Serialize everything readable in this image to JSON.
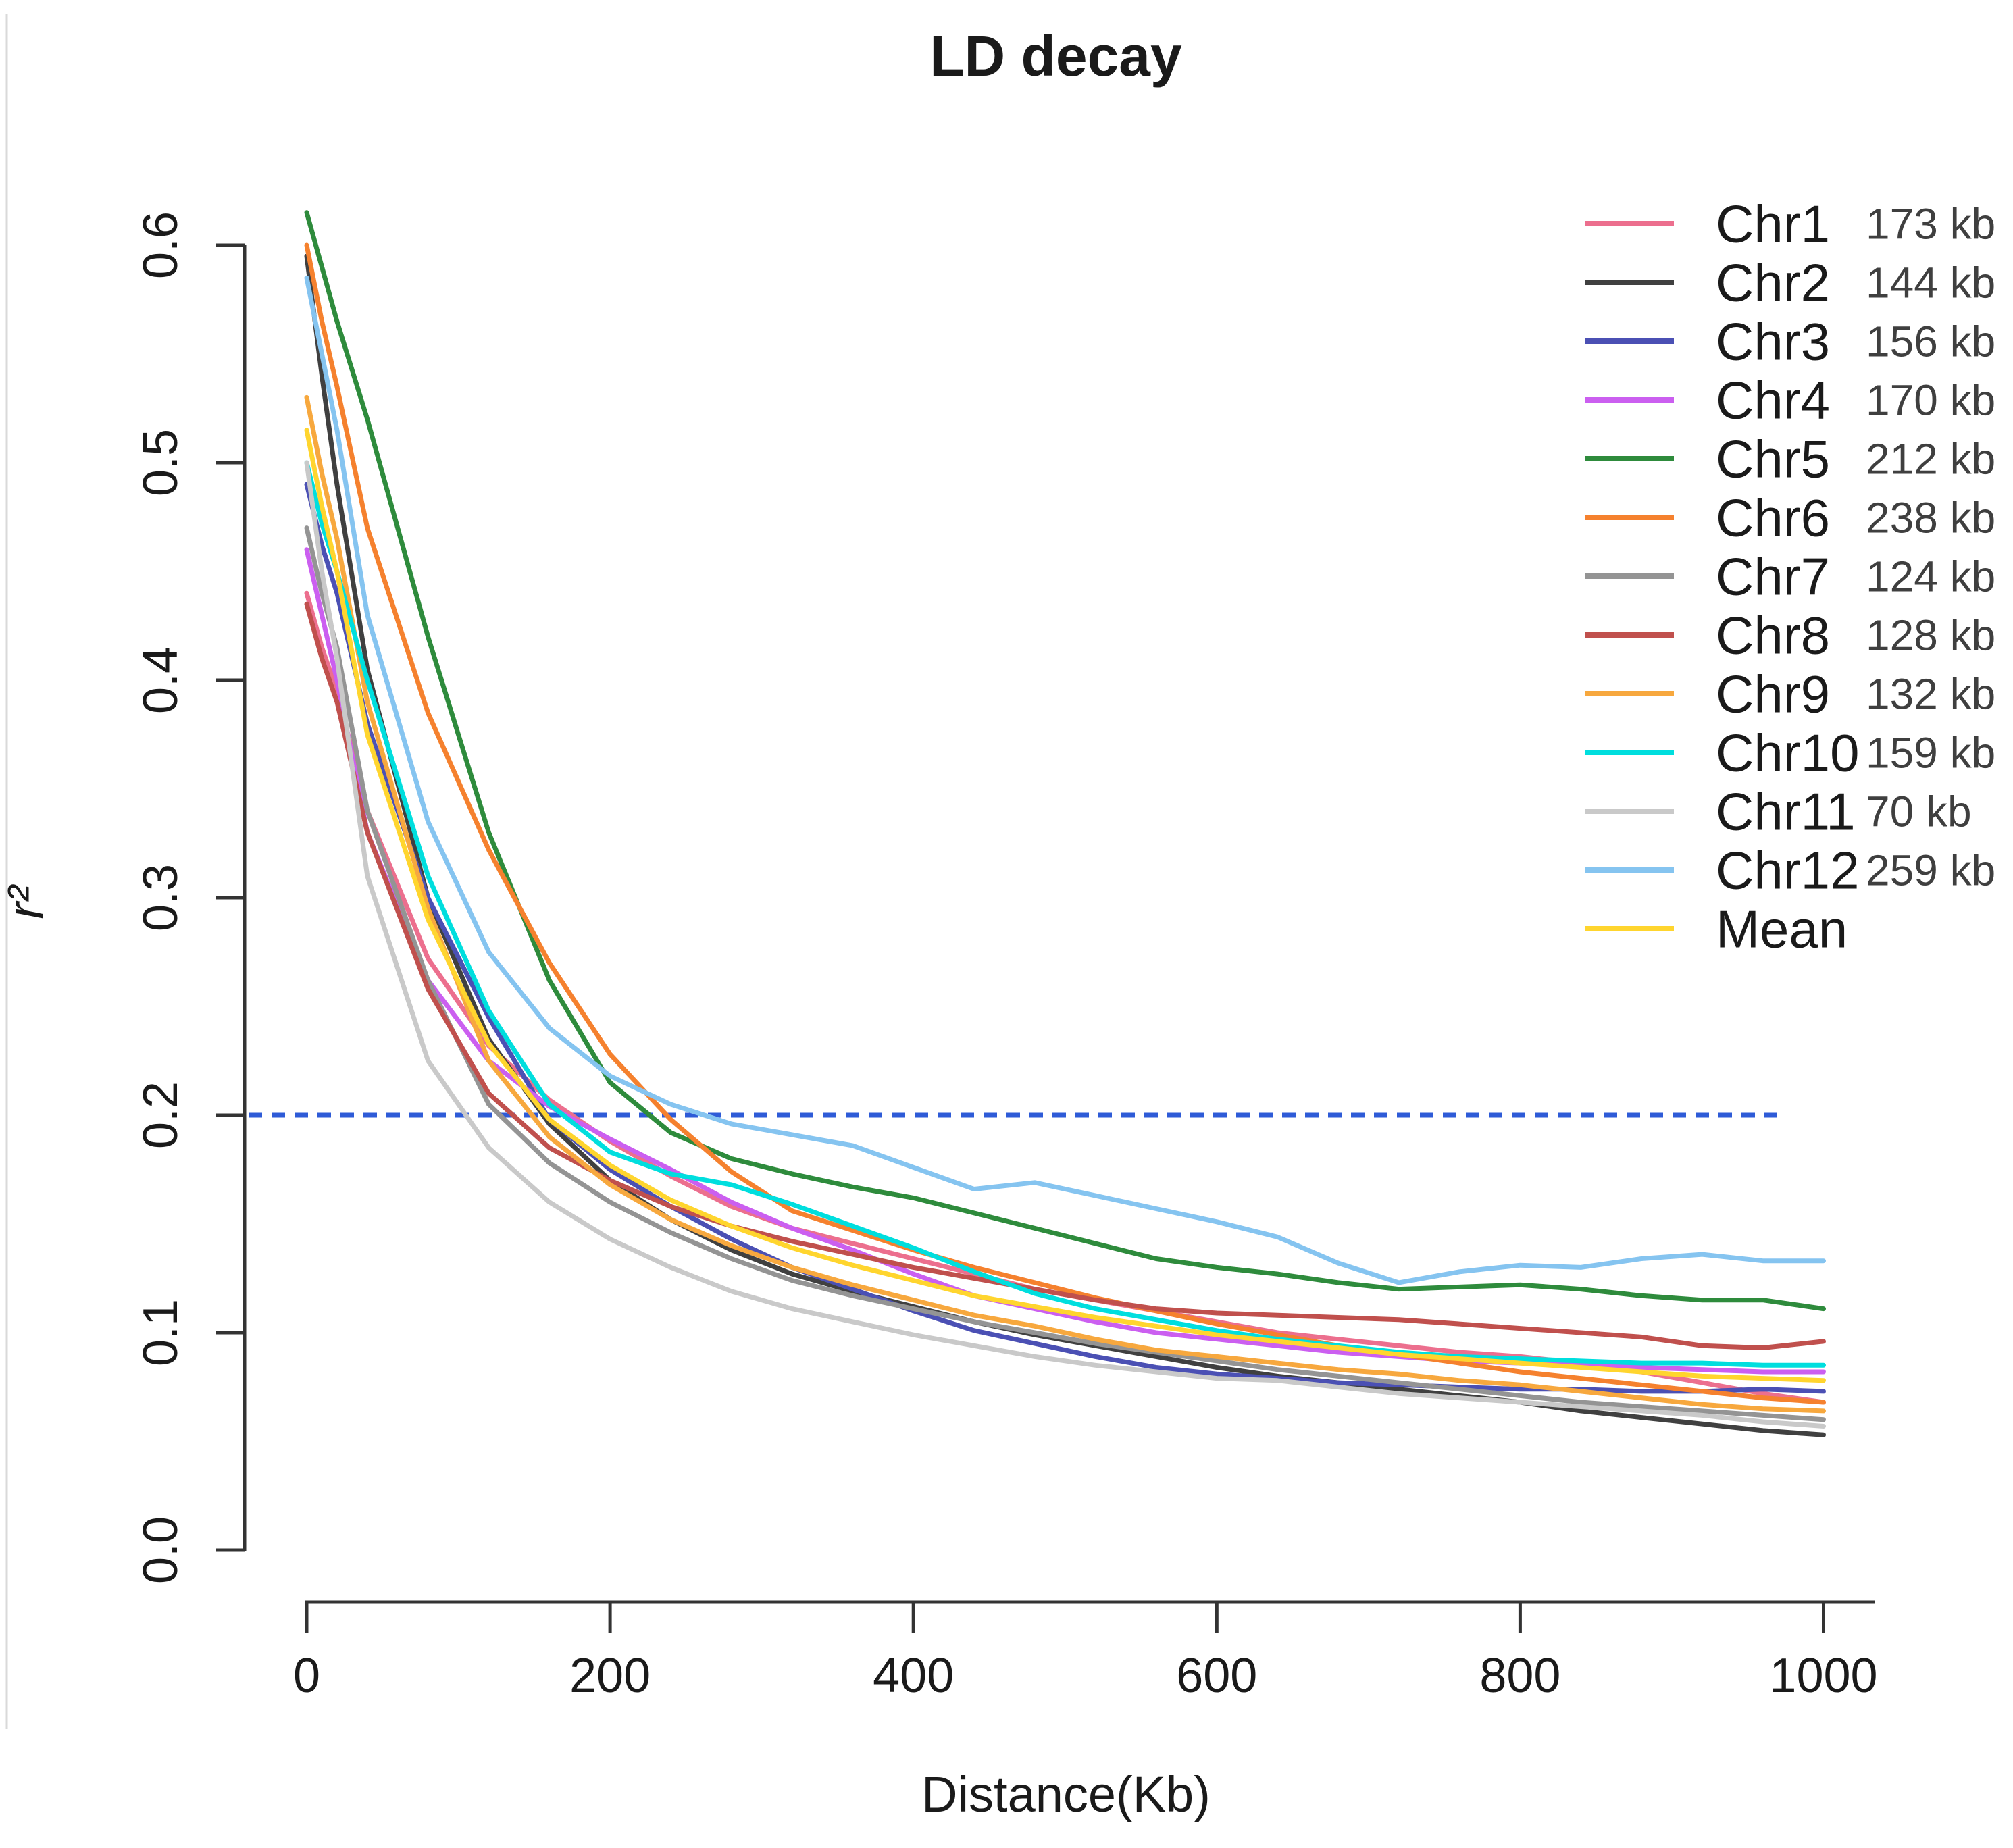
{
  "chart_data": {
    "type": "line",
    "title": "LD decay",
    "xlabel": "Distance(Kb)",
    "ylabel": "r²",
    "xlim": [
      0,
      1000
    ],
    "ylim": [
      0.0,
      0.6
    ],
    "x_ticks": [
      0,
      200,
      400,
      600,
      800,
      1000
    ],
    "y_ticks": [
      "0.0",
      "0.1",
      "0.2",
      "0.3",
      "0.4",
      "0.5",
      "0.6"
    ],
    "grid": false,
    "legend_position": "top-right",
    "threshold": {
      "y": 0.2,
      "color": "#2e5bd7",
      "style": "dashed"
    },
    "x": [
      0,
      10,
      20,
      40,
      80,
      120,
      160,
      200,
      240,
      280,
      320,
      360,
      400,
      440,
      480,
      520,
      560,
      600,
      640,
      680,
      720,
      760,
      800,
      840,
      880,
      920,
      960,
      1000
    ],
    "series": [
      {
        "name": "Chr1",
        "kb_label": "173 kb",
        "color": "#ec6f8e",
        "values": [
          0.44,
          0.415,
          0.395,
          0.34,
          0.272,
          0.232,
          0.207,
          0.188,
          0.172,
          0.158,
          0.148,
          0.141,
          0.134,
          0.127,
          0.12,
          0.115,
          0.11,
          0.105,
          0.1,
          0.097,
          0.094,
          0.091,
          0.089,
          0.086,
          0.082,
          0.077,
          0.072,
          0.068
        ]
      },
      {
        "name": "Chr2",
        "kb_label": "144 kb",
        "color": "#404040",
        "values": [
          0.595,
          0.54,
          0.49,
          0.405,
          0.3,
          0.235,
          0.196,
          0.17,
          0.152,
          0.138,
          0.127,
          0.119,
          0.112,
          0.105,
          0.099,
          0.094,
          0.089,
          0.084,
          0.08,
          0.077,
          0.074,
          0.071,
          0.068,
          0.064,
          0.061,
          0.058,
          0.055,
          0.053
        ]
      },
      {
        "name": "Chr3",
        "kb_label": "156 kb",
        "color": "#4b50b4",
        "values": [
          0.49,
          0.462,
          0.44,
          0.38,
          0.3,
          0.245,
          0.198,
          0.175,
          0.158,
          0.143,
          0.13,
          0.12,
          0.11,
          0.101,
          0.095,
          0.089,
          0.084,
          0.081,
          0.079,
          0.077,
          0.076,
          0.075,
          0.074,
          0.074,
          0.073,
          0.073,
          0.074,
          0.073
        ]
      },
      {
        "name": "Chr4",
        "kb_label": "170 kb",
        "color": "#cb5ff0",
        "values": [
          0.46,
          0.43,
          0.4,
          0.33,
          0.262,
          0.225,
          0.204,
          0.189,
          0.175,
          0.16,
          0.148,
          0.138,
          0.127,
          0.117,
          0.111,
          0.105,
          0.1,
          0.097,
          0.094,
          0.091,
          0.089,
          0.087,
          0.086,
          0.085,
          0.084,
          0.083,
          0.082,
          0.082
        ]
      },
      {
        "name": "Chr5",
        "kb_label": "212 kb",
        "color": "#2e8b3c",
        "values": [
          0.615,
          0.59,
          0.565,
          0.52,
          0.42,
          0.33,
          0.262,
          0.215,
          0.192,
          0.18,
          0.173,
          0.167,
          0.162,
          0.155,
          0.148,
          0.141,
          0.134,
          0.13,
          0.127,
          0.123,
          0.12,
          0.121,
          0.122,
          0.12,
          0.117,
          0.115,
          0.115,
          0.111
        ]
      },
      {
        "name": "Chr6",
        "kb_label": "238 kb",
        "color": "#f5812e",
        "values": [
          0.6,
          0.565,
          0.535,
          0.47,
          0.385,
          0.322,
          0.27,
          0.228,
          0.198,
          0.174,
          0.156,
          0.147,
          0.138,
          0.13,
          0.123,
          0.116,
          0.11,
          0.104,
          0.099,
          0.094,
          0.09,
          0.086,
          0.082,
          0.079,
          0.076,
          0.073,
          0.07,
          0.068
        ]
      },
      {
        "name": "Chr7",
        "kb_label": "124 kb",
        "color": "#949494",
        "values": [
          0.47,
          0.44,
          0.415,
          0.34,
          0.262,
          0.205,
          0.178,
          0.16,
          0.146,
          0.134,
          0.124,
          0.117,
          0.111,
          0.105,
          0.1,
          0.095,
          0.091,
          0.087,
          0.083,
          0.08,
          0.077,
          0.074,
          0.071,
          0.068,
          0.066,
          0.064,
          0.062,
          0.06
        ]
      },
      {
        "name": "Chr8",
        "kb_label": "128 kb",
        "color": "#c0504d",
        "values": [
          0.435,
          0.41,
          0.39,
          0.33,
          0.258,
          0.21,
          0.185,
          0.17,
          0.158,
          0.149,
          0.142,
          0.136,
          0.13,
          0.125,
          0.12,
          0.115,
          0.111,
          0.109,
          0.108,
          0.107,
          0.106,
          0.104,
          0.102,
          0.1,
          0.098,
          0.094,
          0.093,
          0.096
        ]
      },
      {
        "name": "Chr9",
        "kb_label": "132 kb",
        "color": "#f7a83e",
        "values": [
          0.53,
          0.495,
          0.465,
          0.39,
          0.295,
          0.225,
          0.19,
          0.168,
          0.152,
          0.14,
          0.13,
          0.122,
          0.115,
          0.108,
          0.103,
          0.097,
          0.092,
          0.089,
          0.086,
          0.083,
          0.081,
          0.078,
          0.076,
          0.073,
          0.07,
          0.067,
          0.065,
          0.064
        ]
      },
      {
        "name": "Chr10",
        "kb_label": "159 kb",
        "color": "#00dede",
        "values": [
          0.5,
          0.472,
          0.45,
          0.4,
          0.31,
          0.248,
          0.205,
          0.183,
          0.173,
          0.168,
          0.159,
          0.149,
          0.139,
          0.128,
          0.118,
          0.111,
          0.106,
          0.101,
          0.097,
          0.094,
          0.091,
          0.089,
          0.088,
          0.087,
          0.086,
          0.086,
          0.085,
          0.085
        ]
      },
      {
        "name": "Chr11",
        "kb_label": "70 kb",
        "color": "#c9c9c9",
        "values": [
          0.5,
          0.45,
          0.41,
          0.31,
          0.225,
          0.185,
          0.16,
          0.143,
          0.13,
          0.119,
          0.111,
          0.105,
          0.099,
          0.094,
          0.089,
          0.085,
          0.082,
          0.079,
          0.078,
          0.075,
          0.072,
          0.07,
          0.068,
          0.066,
          0.064,
          0.062,
          0.059,
          0.057
        ]
      },
      {
        "name": "Chr12",
        "kb_label": "259 kb",
        "color": "#85c4f0",
        "values": [
          0.585,
          0.55,
          0.515,
          0.43,
          0.335,
          0.275,
          0.24,
          0.218,
          0.205,
          0.196,
          0.191,
          0.186,
          0.176,
          0.166,
          0.169,
          0.163,
          0.157,
          0.151,
          0.144,
          0.132,
          0.123,
          0.128,
          0.131,
          0.13,
          0.134,
          0.136,
          0.133,
          0.133
        ]
      },
      {
        "name": "Mean",
        "kb_label": "",
        "color": "#ffd52e",
        "values": [
          0.515,
          0.48,
          0.45,
          0.375,
          0.29,
          0.233,
          0.198,
          0.177,
          0.161,
          0.149,
          0.139,
          0.131,
          0.124,
          0.117,
          0.112,
          0.107,
          0.103,
          0.099,
          0.096,
          0.093,
          0.09,
          0.088,
          0.086,
          0.084,
          0.082,
          0.08,
          0.079,
          0.078
        ]
      }
    ]
  }
}
